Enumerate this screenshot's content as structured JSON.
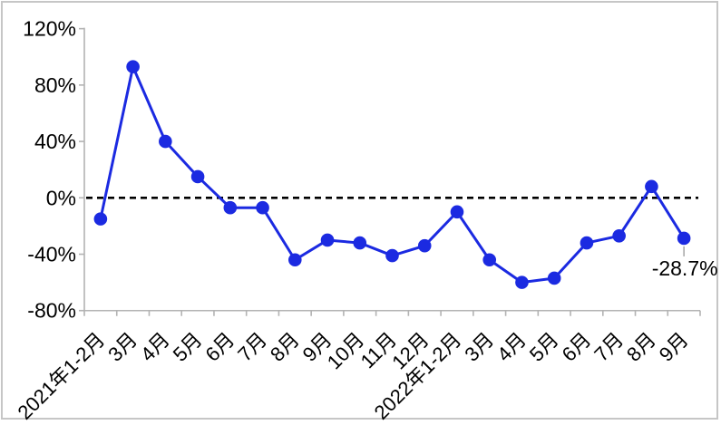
{
  "chart_data": {
    "type": "line",
    "title": "",
    "xlabel": "",
    "ylabel": "",
    "categories": [
      "2021年1-2月",
      "3月",
      "4月",
      "5月",
      "6月",
      "7月",
      "8月",
      "9月",
      "10月",
      "11月",
      "12月",
      "2022年1-2月",
      "3月",
      "4月",
      "5月",
      "6月",
      "7月",
      "8月",
      "9月"
    ],
    "values": [
      -15,
      93,
      40,
      15,
      -7,
      -7,
      -44,
      -30,
      -32,
      -41,
      -34,
      -10,
      -44,
      -60,
      -57,
      -32,
      -27,
      8,
      -28.7
    ],
    "ylim": [
      -80,
      120
    ],
    "yticks": [
      120,
      80,
      40,
      0,
      -40,
      -80
    ],
    "ytick_labels": [
      "120%",
      "80%",
      "40%",
      "0%",
      "-40%",
      "-80%"
    ],
    "grid": false,
    "legend": false,
    "zero_line_style": "dashed",
    "annotation": {
      "text": "-28.7%",
      "index": 18
    },
    "colors": {
      "line": "#1b2ae1",
      "marker": "#1b2ae1",
      "axis": "#b3b3b3",
      "zero_line": "#000000",
      "annotation_leader": "#a6a6a6",
      "text": "#000000",
      "frame": "#c6c6c6"
    }
  }
}
